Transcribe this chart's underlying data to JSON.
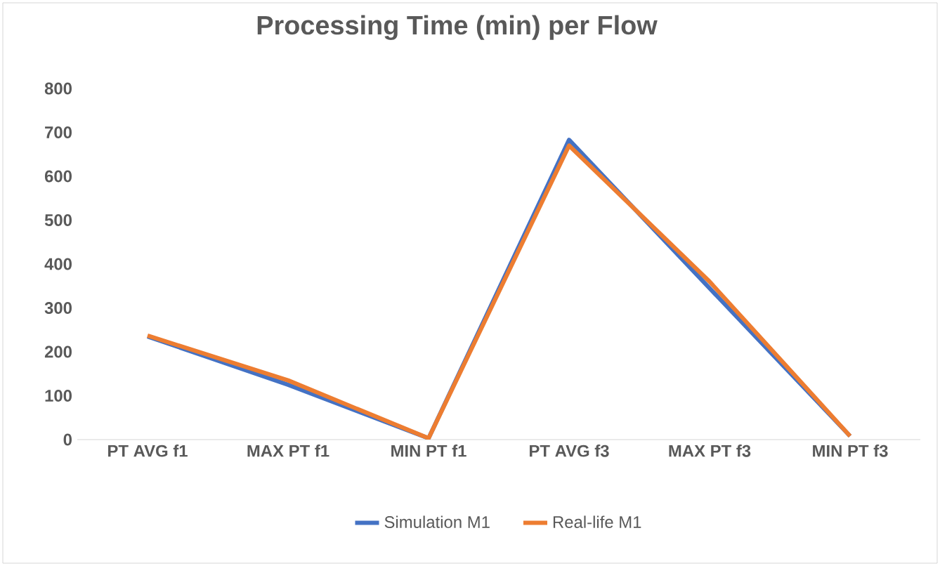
{
  "chart_data": {
    "type": "line",
    "title": "Processing Time (min) per Flow",
    "categories": [
      "PT AVG f1",
      "MAX PT f1",
      "MIN PT f1",
      "PT AVG f3",
      "MAX PT f3",
      "MIN PT f3"
    ],
    "series": [
      {
        "name": "Simulation M1",
        "color": "#4472c4",
        "values": [
          235,
          125,
          3,
          683,
          345,
          8
        ]
      },
      {
        "name": "Real-life M1",
        "color": "#ed7d31",
        "values": [
          237,
          135,
          3,
          670,
          360,
          8
        ]
      }
    ],
    "ylim": [
      0,
      800
    ],
    "yticks": [
      0,
      100,
      200,
      300,
      400,
      500,
      600,
      700,
      800
    ],
    "grid": false,
    "legend": "bottom",
    "marker": "none",
    "line_style": "solid"
  }
}
